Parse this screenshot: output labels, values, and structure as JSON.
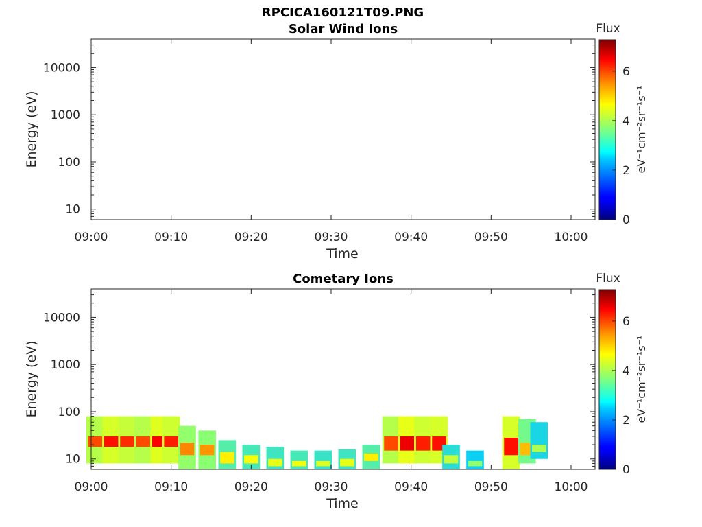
{
  "figure_title": "RPCICA160121T09.PNG",
  "chart_data": [
    {
      "type": "heatmap",
      "title": "Solar Wind Ions",
      "xlabel": "Time",
      "ylabel": "Energy (eV)",
      "x_ticks": [
        "09:00",
        "09:10",
        "09:20",
        "09:30",
        "09:40",
        "09:50",
        "10:00"
      ],
      "x_range": [
        "09:00",
        "10:03"
      ],
      "y_scale": "log",
      "y_ticks": [
        10,
        100,
        1000,
        10000
      ],
      "y_tick_labels": [
        "10",
        "100",
        "1000",
        "10000"
      ],
      "ylim": [
        6,
        40000
      ],
      "colorbar": {
        "title": "Flux",
        "unit": "eV⁻¹cm⁻²sr⁻¹s⁻¹",
        "range": [
          0,
          7.3
        ],
        "ticks": [
          0,
          2,
          4,
          6
        ],
        "colormap": "jet"
      },
      "cells": []
    },
    {
      "type": "heatmap",
      "title": "Cometary Ions",
      "xlabel": "Time",
      "ylabel": "Energy (eV)",
      "x_ticks": [
        "09:00",
        "09:10",
        "09:20",
        "09:30",
        "09:40",
        "09:50",
        "10:00"
      ],
      "x_range": [
        "09:00",
        "10:03"
      ],
      "y_scale": "log",
      "y_ticks": [
        10,
        100,
        1000,
        10000
      ],
      "y_tick_labels": [
        "10",
        "100",
        "1000",
        "10000"
      ],
      "ylim": [
        6,
        40000
      ],
      "colorbar": {
        "title": "Flux",
        "unit": "eV⁻¹cm⁻²sr⁻¹s⁻¹",
        "range": [
          0,
          7.3
        ],
        "ticks": [
          0,
          2,
          4,
          6
        ],
        "colormap": "jet"
      },
      "cells": [
        {
          "t": 0.5,
          "e": [
            8,
            80
          ],
          "peak": [
            18,
            30
          ],
          "level": 6.0
        },
        {
          "t": 2.5,
          "e": [
            8,
            80
          ],
          "peak": [
            18,
            30
          ],
          "level": 6.4
        },
        {
          "t": 4.5,
          "e": [
            8,
            80
          ],
          "peak": [
            18,
            30
          ],
          "level": 6.2
        },
        {
          "t": 6.5,
          "e": [
            8,
            80
          ],
          "peak": [
            18,
            30
          ],
          "level": 6.0
        },
        {
          "t": 8.5,
          "e": [
            8,
            80
          ],
          "peak": [
            18,
            30
          ],
          "level": 6.5
        },
        {
          "t": 10.0,
          "e": [
            8,
            80
          ],
          "peak": [
            18,
            30
          ],
          "level": 6.3
        },
        {
          "t": 12.0,
          "e": [
            6,
            50
          ],
          "peak": [
            12,
            22
          ],
          "level": 5.6
        },
        {
          "t": 14.5,
          "e": [
            6,
            40
          ],
          "peak": [
            12,
            20
          ],
          "level": 5.5
        },
        {
          "t": 17.0,
          "e": [
            6,
            25
          ],
          "peak": [
            8,
            14
          ],
          "level": 4.8
        },
        {
          "t": 20.0,
          "e": [
            6,
            20
          ],
          "peak": [
            8,
            12
          ],
          "level": 4.6
        },
        {
          "t": 23.0,
          "e": [
            6,
            18
          ],
          "peak": [
            7,
            10
          ],
          "level": 4.5
        },
        {
          "t": 26.0,
          "e": [
            6,
            15
          ],
          "peak": [
            7,
            9
          ],
          "level": 4.6
        },
        {
          "t": 29.0,
          "e": [
            6,
            15
          ],
          "peak": [
            7,
            9
          ],
          "level": 4.4
        },
        {
          "t": 32.0,
          "e": [
            6,
            16
          ],
          "peak": [
            7,
            10
          ],
          "level": 4.5
        },
        {
          "t": 35.0,
          "e": [
            6,
            20
          ],
          "peak": [
            9,
            13
          ],
          "level": 4.8
        },
        {
          "t": 37.5,
          "e": [
            8,
            80
          ],
          "peak": [
            15,
            30
          ],
          "level": 6.0
        },
        {
          "t": 39.5,
          "e": [
            8,
            80
          ],
          "peak": [
            15,
            30
          ],
          "level": 6.6
        },
        {
          "t": 41.5,
          "e": [
            8,
            80
          ],
          "peak": [
            15,
            30
          ],
          "level": 6.3
        },
        {
          "t": 43.5,
          "e": [
            8,
            80
          ],
          "peak": [
            15,
            30
          ],
          "level": 6.4
        },
        {
          "t": 45.0,
          "e": [
            6,
            20
          ],
          "peak": [
            8,
            12
          ],
          "level": 4.2
        },
        {
          "t": 48.0,
          "e": [
            6,
            15
          ],
          "peak": [
            7,
            9
          ],
          "level": 3.8
        },
        {
          "t": 52.5,
          "e": [
            6,
            80
          ],
          "peak": [
            12,
            28
          ],
          "level": 6.4
        },
        {
          "t": 54.5,
          "e": [
            8,
            70
          ],
          "peak": [
            12,
            22
          ],
          "level": 5.2
        },
        {
          "t": 56.0,
          "e": [
            10,
            60
          ],
          "peak": [
            14,
            20
          ],
          "level": 4.0
        }
      ]
    }
  ]
}
